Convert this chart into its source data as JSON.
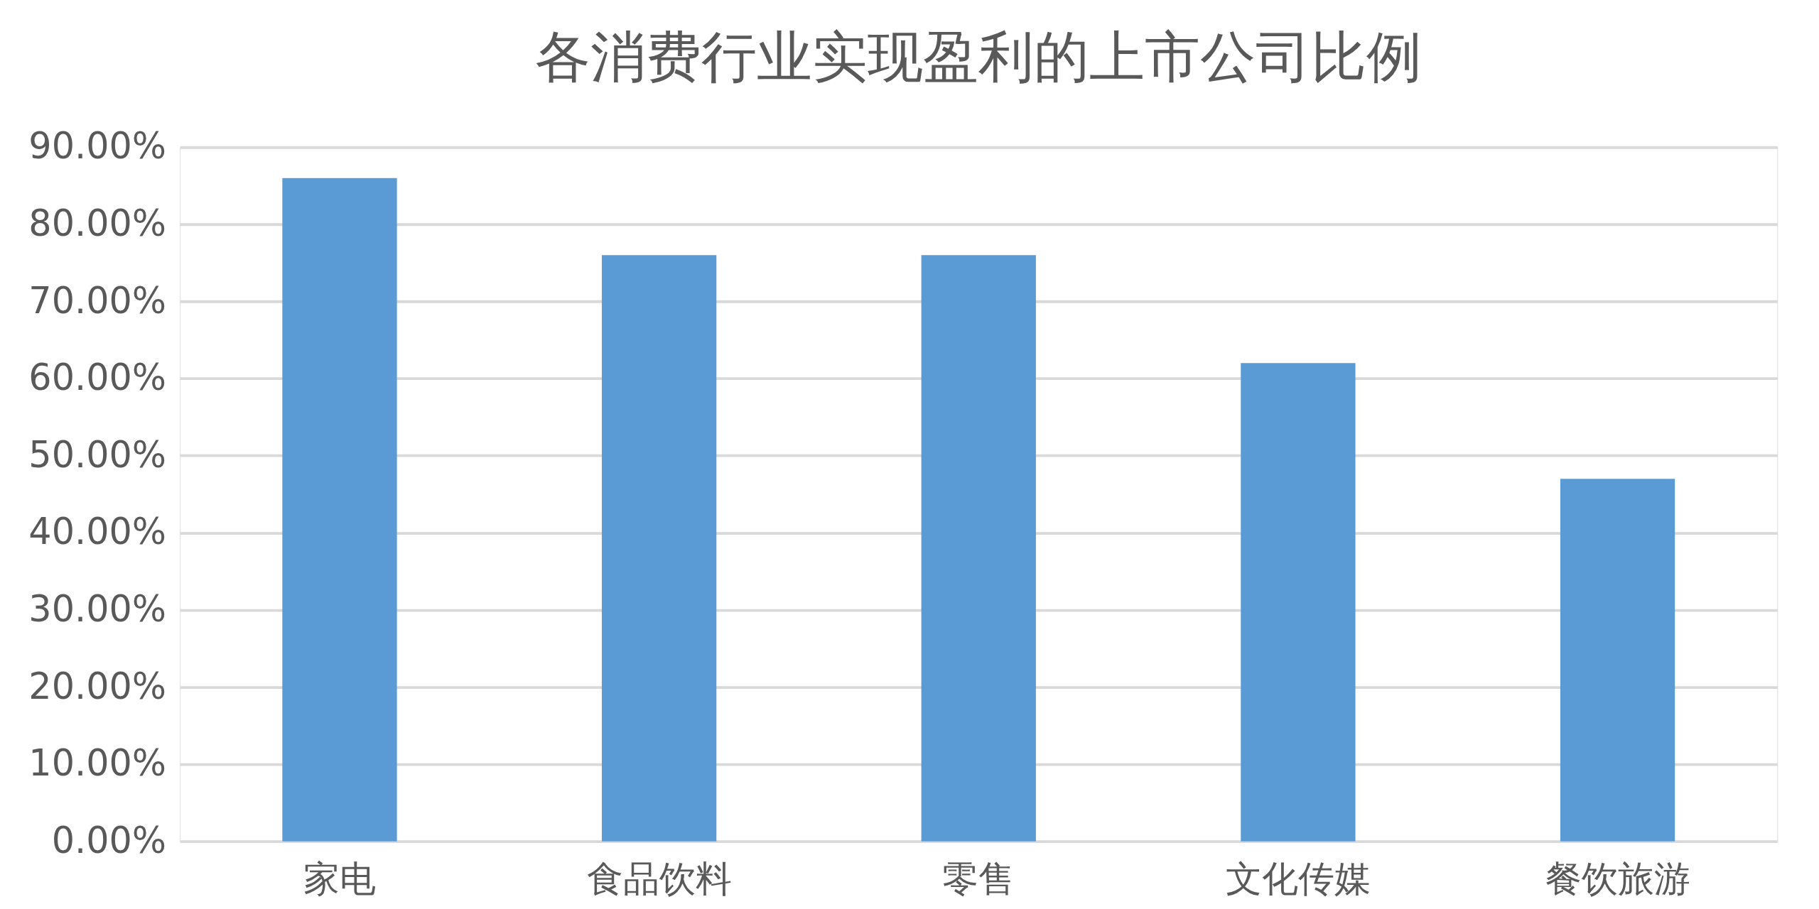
{
  "chart_data": {
    "type": "bar",
    "title": "各消费行业实现盈利的上市公司比例",
    "categories": [
      "家电",
      "食品饮料",
      "零售",
      "文化传媒",
      "餐饮旅游"
    ],
    "series": [
      {
        "color": "#5b9bd5",
        "values": [
          86,
          76,
          76,
          62,
          47
        ]
      }
    ],
    "ylim": [
      0,
      90
    ],
    "yticks": [
      {
        "value": 0,
        "label": "0.00%"
      },
      {
        "value": 10,
        "label": "10.00%"
      },
      {
        "value": 20,
        "label": "20.00%"
      },
      {
        "value": 30,
        "label": "30.00%"
      },
      {
        "value": 40,
        "label": "40.00%"
      },
      {
        "value": 50,
        "label": "50.00%"
      },
      {
        "value": 60,
        "label": "60.00%"
      },
      {
        "value": 70,
        "label": "70.00%"
      },
      {
        "value": 80,
        "label": "80.00%"
      },
      {
        "value": 90,
        "label": "90.00%"
      }
    ],
    "grid": "y",
    "legend": false
  }
}
